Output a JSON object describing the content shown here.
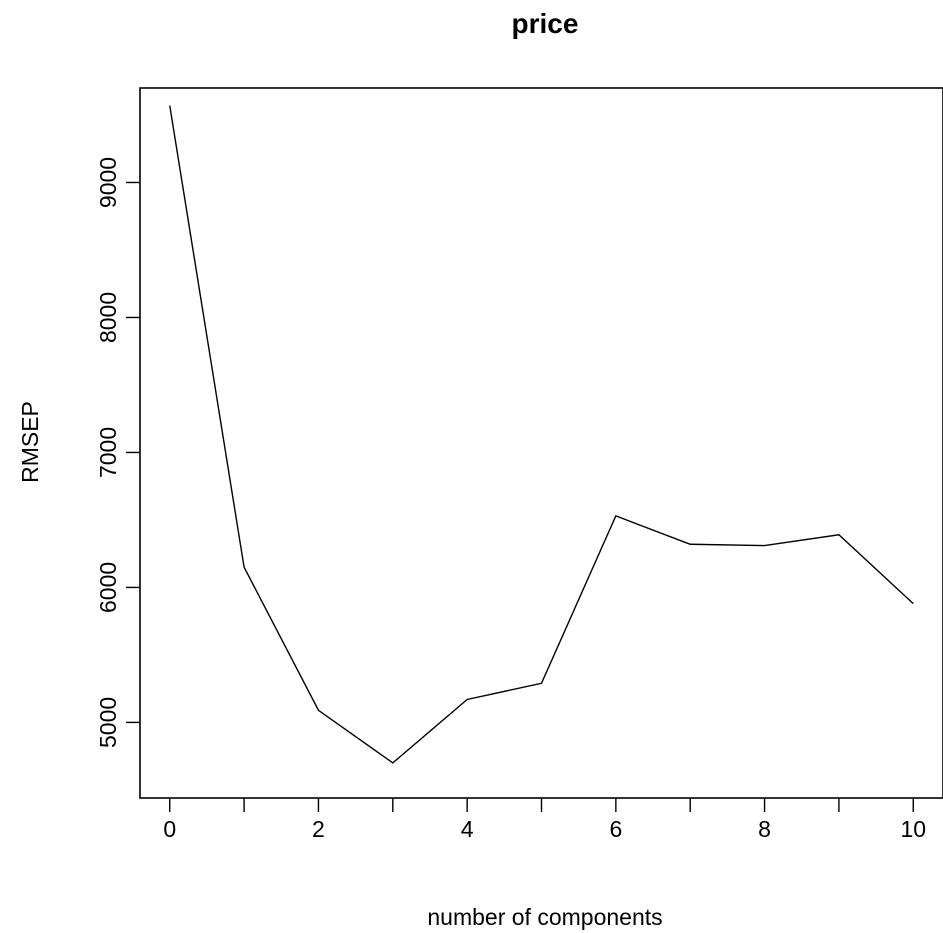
{
  "chart_data": {
    "type": "line",
    "title": "price",
    "xlabel": "number of components",
    "ylabel": "RMSEP",
    "x": [
      0,
      1,
      2,
      3,
      4,
      5,
      6,
      7,
      8,
      9,
      10
    ],
    "series": [
      {
        "values": [
          9570,
          6150,
          5090,
          4700,
          5170,
          5290,
          6530,
          6320,
          6310,
          6390,
          5880
        ],
        "color": "#000000"
      }
    ],
    "xticks": [
      0,
      2,
      4,
      6,
      8,
      10
    ],
    "yticks": [
      5000,
      6000,
      7000,
      8000,
      9000
    ],
    "xlim": [
      -0.4,
      10.4
    ],
    "ylim": [
      4440,
      9700
    ],
    "grid": false,
    "legend": "none"
  }
}
